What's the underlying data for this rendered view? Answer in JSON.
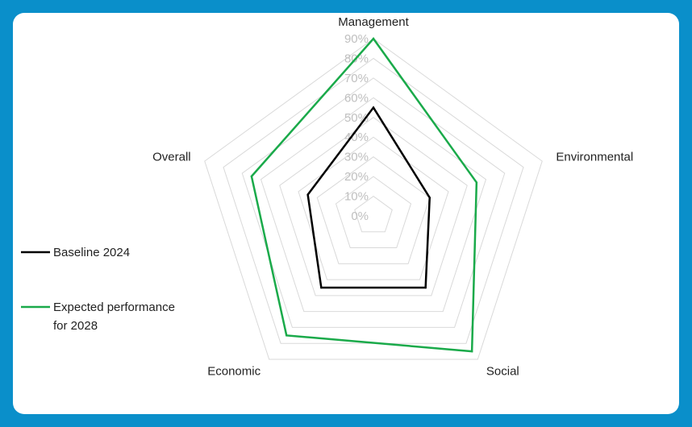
{
  "chart_data": {
    "type": "radar",
    "categories": [
      "Management",
      "Environmental",
      "Social",
      "Economic",
      "Overall"
    ],
    "ticks": [
      "0%",
      "10%",
      "20%",
      "30%",
      "40%",
      "50%",
      "60%",
      "70%",
      "80%",
      "90%"
    ],
    "rmax": 90,
    "series": [
      {
        "name": "Baseline 2024",
        "color": "#000000",
        "values": [
          55,
          30,
          45,
          45,
          35
        ]
      },
      {
        "name": "Expected performance for 2028",
        "color": "#1aaa4a",
        "values": [
          90,
          55,
          85,
          75,
          65
        ]
      }
    ],
    "legend": {
      "position": "left",
      "items": [
        {
          "lines": [
            "Baseline 2024"
          ]
        },
        {
          "lines": [
            "Expected performance",
            "for 2028"
          ]
        }
      ]
    },
    "grid": true,
    "grid_color": "#d9d9d9"
  }
}
